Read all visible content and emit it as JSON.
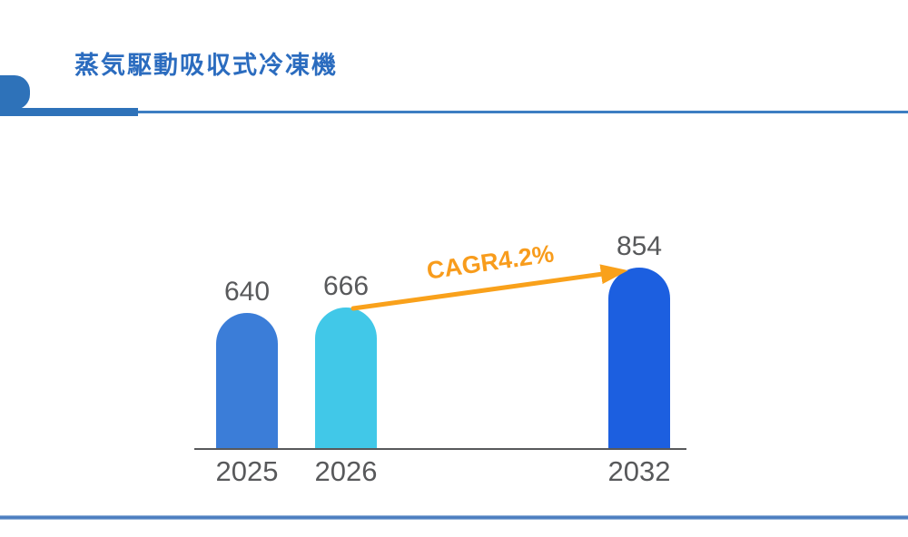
{
  "page": {
    "title": "蒸気駆動吸収式冷凍機"
  },
  "colors": {
    "title": "#2b6cbf",
    "accent": "#2e72b9",
    "axis": "#58595b",
    "text": "#58595b",
    "annotation": "#f89c1c",
    "arrow": "#f9a11b",
    "footer": "#4a7cbf",
    "bars": [
      "#3b7dd8",
      "#41c8e8",
      "#1c5fe0"
    ]
  },
  "chart_data": {
    "type": "bar",
    "title": "蒸気駆動吸収式冷凍機",
    "categories": [
      "2025",
      "2026",
      "2032"
    ],
    "values": [
      640,
      666,
      854
    ],
    "value_labels": [
      "640",
      "666",
      "854"
    ],
    "annotation": "CAGR4.2%",
    "annotation_from": "2026",
    "annotation_to": "2032",
    "xlabel": "",
    "ylabel": "",
    "ylim": [
      0,
      854
    ],
    "grid": false,
    "legend": false,
    "bar_colors": [
      "#3b7dd8",
      "#41c8e8",
      "#1c5fe0"
    ]
  }
}
